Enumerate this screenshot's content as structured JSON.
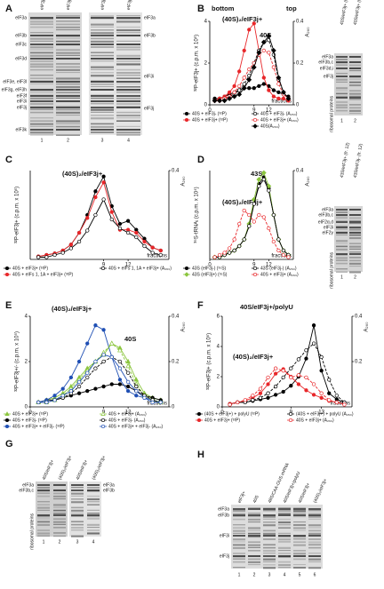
{
  "chart_data": [
    {
      "type": "line",
      "panel": "B",
      "annotations": [
        "bottom",
        "top",
        "(40S)₂/eIF3j+",
        "40S"
      ],
      "ylabel": "³²P-eIF3j+ (c.p.m. x 10⁵)",
      "y2label": "A₂₆₀",
      "xlabel": "fractions",
      "x": [
        1,
        2,
        3,
        4,
        5,
        6,
        7,
        8,
        9,
        10,
        11,
        12,
        13,
        14,
        15,
        16
      ],
      "xlim": [
        0,
        17
      ],
      "xticks": [
        0,
        9,
        12
      ],
      "ylim": [
        0,
        4
      ],
      "yticks": [
        0,
        2,
        4
      ],
      "y2lim": [
        0,
        0.4
      ],
      "y2ticks": [
        0,
        0.2,
        0.4
      ],
      "series": [
        {
          "name": "40S + eIF3j- (³²P)",
          "color": "#000000",
          "marker": "circle",
          "filled": true,
          "dashed": false,
          "values": [
            0.3,
            0.3,
            0.4,
            0.5,
            0.6,
            0.7,
            0.8,
            0.8,
            0.8,
            0.9,
            1.0,
            0.9,
            0.7,
            0.6,
            0.5,
            0.4
          ]
        },
        {
          "name": "40S + eIF3j+ (³²P)",
          "color": "#e8272a",
          "marker": "circle",
          "filled": true,
          "dashed": false,
          "values": [
            0.2,
            0.3,
            0.4,
            0.6,
            0.9,
            1.6,
            2.6,
            3.6,
            3.9,
            2.6,
            1.3,
            0.7,
            0.4,
            0.3,
            0.3,
            0.2
          ]
        },
        {
          "name": "40S + eIF3j- (A₂₆₀)",
          "color": "#000000",
          "marker": "circle",
          "filled": false,
          "dashed": true,
          "axis": "y2",
          "values": [
            0.02,
            0.02,
            0.03,
            0.04,
            0.05,
            0.07,
            0.1,
            0.14,
            0.2,
            0.26,
            0.3,
            0.31,
            0.24,
            0.12,
            0.06,
            0.03
          ]
        },
        {
          "name": "40S + eIF3j+ (A₂₆₀)",
          "color": "#e8272a",
          "marker": "circle",
          "filled": false,
          "dashed": true,
          "axis": "y2",
          "values": [
            0.02,
            0.02,
            0.03,
            0.04,
            0.06,
            0.09,
            0.13,
            0.17,
            0.2,
            0.24,
            0.26,
            0.25,
            0.18,
            0.1,
            0.05,
            0.03
          ]
        },
        {
          "name": "40S(A₂₆₀)",
          "color": "#000000",
          "marker": "diamond",
          "filled": true,
          "dashed": false,
          "axis": "y2",
          "values": [
            0.02,
            0.02,
            0.02,
            0.03,
            0.04,
            0.05,
            0.08,
            0.12,
            0.18,
            0.25,
            0.3,
            0.33,
            0.26,
            0.13,
            0.06,
            0.03
          ]
        }
      ]
    },
    {
      "type": "line",
      "panel": "C",
      "annotations": [
        "(40S)₂/eIF3j+"
      ],
      "ylabel": "³²P-eIF3j+ (c.p.m. x 10⁵)",
      "y2label": "A₂₆₀",
      "xlabel": "fractions",
      "x": [
        1,
        2,
        3,
        4,
        5,
        6,
        7,
        8,
        9,
        10,
        11,
        12,
        13,
        14,
        15,
        16
      ],
      "xlim": [
        0,
        17
      ],
      "xticks": [
        9,
        12
      ],
      "ylim": [
        0,
        3
      ],
      "yticks": [],
      "y2lim": [
        0,
        0.4
      ],
      "y2ticks": [
        0.4
      ],
      "series": [
        {
          "name": "40S + eIF3j+ (³²P)",
          "color": "#000000",
          "marker": "circle",
          "filled": true,
          "dashed": false,
          "values": [
            0.1,
            0.15,
            0.2,
            0.3,
            0.5,
            0.9,
            1.5,
            2.3,
            2.8,
            1.8,
            1.2,
            1.3,
            1.0,
            0.7,
            0.4,
            0.3
          ]
        },
        {
          "name": "40S + eIFs 1, 1A + eIF3j+ (³²P)",
          "color": "#e8272a",
          "marker": "circle",
          "filled": true,
          "dashed": false,
          "values": [
            0.1,
            0.15,
            0.2,
            0.3,
            0.5,
            0.9,
            1.4,
            2.1,
            2.6,
            1.6,
            1.0,
            1.0,
            0.9,
            0.6,
            0.4,
            0.3
          ]
        },
        {
          "name": "40S + eIFs 1, 1A + eIF3j+ (A₂₆₀)",
          "color": "#000000",
          "marker": "circle",
          "filled": false,
          "dashed": false,
          "axis": "y2",
          "values": [
            0.01,
            0.01,
            0.02,
            0.03,
            0.05,
            0.08,
            0.13,
            0.2,
            0.27,
            0.18,
            0.14,
            0.12,
            0.1,
            0.06,
            0.03,
            0.02
          ]
        }
      ]
    },
    {
      "type": "line",
      "panel": "D",
      "annotations": [
        "43S",
        "(40S)₂/eIF3j+"
      ],
      "ylabel": "³⁵S-tRNAᵢ (c.p.m. x 10⁴)",
      "y2label": "A₂₆₀",
      "xlabel": "fractions",
      "x": [
        1,
        2,
        3,
        4,
        5,
        6,
        7,
        8,
        9,
        10,
        11,
        12,
        13,
        14,
        15,
        16
      ],
      "xlim": [
        0,
        17
      ],
      "xticks": [
        0,
        9,
        12
      ],
      "ylim": [
        0,
        4
      ],
      "yticks": [],
      "y2lim": [
        0,
        0.4
      ],
      "y2ticks": [
        0.4
      ],
      "series": [
        {
          "name": "43S (eIF3j-) (³⁵S)",
          "color": "#000000",
          "marker": "circle",
          "filled": true,
          "dashed": false,
          "values": [
            0.1,
            0.1,
            0.2,
            0.3,
            0.4,
            0.6,
            0.9,
            1.5,
            2.5,
            3.4,
            3.7,
            3.2,
            2.0,
            0.9,
            0.4,
            0.2
          ]
        },
        {
          "name": "43S (eIF3j+) (³⁵S)",
          "color": "#8cc63f",
          "marker": "diamond",
          "filled": true,
          "dashed": false,
          "values": [
            0.1,
            0.1,
            0.2,
            0.3,
            0.4,
            0.6,
            0.9,
            1.6,
            2.7,
            3.6,
            3.9,
            3.3,
            2.0,
            0.9,
            0.4,
            0.2
          ]
        },
        {
          "name": "43S (eIF3j-) (A₂₆₀)",
          "color": "#000000",
          "marker": "circle",
          "filled": false,
          "dashed": false,
          "axis": "y2",
          "values": [
            0.01,
            0.01,
            0.02,
            0.03,
            0.04,
            0.06,
            0.09,
            0.15,
            0.25,
            0.33,
            0.36,
            0.31,
            0.2,
            0.09,
            0.04,
            0.02
          ]
        },
        {
          "name": "40S + eIF3j+ (A₂₆₀)",
          "color": "#e8272a",
          "marker": "circle",
          "filled": false,
          "dashed": true,
          "axis": "y2",
          "values": [
            0.01,
            0.02,
            0.03,
            0.05,
            0.09,
            0.16,
            0.22,
            0.2,
            0.17,
            0.2,
            0.19,
            0.14,
            0.08,
            0.04,
            0.02,
            0.01
          ]
        }
      ]
    },
    {
      "type": "line",
      "panel": "E",
      "annotations": [
        "(40S)₂/eIF3j+",
        "40S"
      ],
      "ylabel": "³²P-eIF3j+/- (c.p.m. x 10⁵)",
      "y2label": "A₂₆₀",
      "xlabel": "fractions",
      "x": [
        1,
        2,
        3,
        4,
        5,
        6,
        7,
        8,
        9,
        10,
        11,
        12,
        13,
        14,
        15,
        16
      ],
      "xlim": [
        0,
        17
      ],
      "xticks": [
        0,
        9,
        12
      ],
      "ylim": [
        0,
        4
      ],
      "yticks": [
        0,
        2,
        4
      ],
      "y2lim": [
        0,
        0.4
      ],
      "y2ticks": [
        0,
        0.2,
        0.4
      ],
      "series": [
        {
          "name": "40S + eIF3j+ (³²P)",
          "color": "#8cc63f",
          "marker": "triangle",
          "filled": true,
          "dashed": false,
          "values": [
            0.2,
            0.3,
            0.4,
            0.6,
            0.9,
            1.3,
            1.7,
            2.0,
            2.3,
            2.8,
            2.6,
            2.0,
            1.2,
            0.6,
            0.4,
            0.3
          ]
        },
        {
          "name": "40S + eIF3j- (³²P)",
          "color": "#000000",
          "marker": "circle",
          "filled": true,
          "dashed": false,
          "values": [
            0.2,
            0.3,
            0.3,
            0.4,
            0.5,
            0.6,
            0.7,
            0.8,
            0.9,
            1.0,
            1.0,
            0.9,
            0.7,
            0.5,
            0.4,
            0.3
          ]
        },
        {
          "name": "40S + eIF3j+ + eIF3j- (³²P)",
          "color": "#1f4fb4",
          "marker": "circle",
          "filled": true,
          "dashed": false,
          "values": [
            0.2,
            0.3,
            0.5,
            0.8,
            1.3,
            2.0,
            2.8,
            3.6,
            3.4,
            2.2,
            1.2,
            0.7,
            0.5,
            0.4,
            0.3,
            0.2
          ]
        },
        {
          "name": "40S + eIF3j+ (A₂₆₀)",
          "color": "#8cc63f",
          "marker": "triangle",
          "filled": false,
          "dashed": true,
          "axis": "y2",
          "values": [
            0.02,
            0.02,
            0.03,
            0.05,
            0.08,
            0.12,
            0.16,
            0.2,
            0.24,
            0.28,
            0.25,
            0.18,
            0.1,
            0.05,
            0.03,
            0.02
          ]
        },
        {
          "name": "40S + eIF3j- (A₂₆₀)",
          "color": "#000000",
          "marker": "circle",
          "filled": false,
          "dashed": true,
          "axis": "y2",
          "values": [
            0.02,
            0.02,
            0.03,
            0.04,
            0.06,
            0.09,
            0.13,
            0.17,
            0.2,
            0.22,
            0.2,
            0.15,
            0.09,
            0.05,
            0.03,
            0.02
          ]
        },
        {
          "name": "40S + eIF3j+ + eIF3j- (A₂₆₀)",
          "color": "#1f4fb4",
          "marker": "circle",
          "filled": false,
          "dashed": false,
          "axis": "y2",
          "values": [
            0.02,
            0.02,
            0.03,
            0.05,
            0.07,
            0.11,
            0.15,
            0.2,
            0.23,
            0.22,
            0.17,
            0.11,
            0.07,
            0.04,
            0.02,
            0.02
          ]
        }
      ]
    },
    {
      "type": "line",
      "panel": "F",
      "annotations": [
        "40S/eIF3j+/polyU",
        "(40S)₂/eIF3j+"
      ],
      "ylabel": "³²P-eIF3j+ (c.p.m. x 10⁵)",
      "y2label": "A₂₆₀",
      "xlabel": "fractions",
      "x": [
        1,
        2,
        3,
        4,
        5,
        6,
        7,
        8,
        9,
        10,
        11,
        12,
        13,
        14,
        15,
        16
      ],
      "xlim": [
        0,
        17
      ],
      "xticks": [
        0,
        9,
        13
      ],
      "ylim": [
        0,
        6
      ],
      "yticks": [
        0,
        2,
        4,
        6
      ],
      "y2lim": [
        0,
        0.4
      ],
      "y2ticks": [
        0.2,
        0.4
      ],
      "series": [
        {
          "name": "(40S + eIF3j+) + polyU (³²P)",
          "color": "#000000",
          "marker": "circle",
          "filled": true,
          "dashed": false,
          "values": [
            0.2,
            0.3,
            0.3,
            0.4,
            0.5,
            0.6,
            0.8,
            1.0,
            1.4,
            2.0,
            3.2,
            5.4,
            2.4,
            0.9,
            0.5,
            0.3
          ]
        },
        {
          "name": "40S + eIF3j+ (³²P)",
          "color": "#e8272a",
          "marker": "circle",
          "filled": true,
          "dashed": false,
          "values": [
            0.2,
            0.3,
            0.4,
            0.6,
            0.9,
            1.5,
            2.2,
            2.5,
            2.0,
            1.5,
            1.1,
            0.8,
            0.6,
            0.4,
            0.3,
            0.2
          ]
        },
        {
          "name": "(40S + eIF3j+) + polyU (A₂₆₀)",
          "color": "#000000",
          "marker": "circle",
          "filled": false,
          "dashed": true,
          "axis": "y2",
          "values": [
            0.01,
            0.02,
            0.02,
            0.03,
            0.04,
            0.06,
            0.09,
            0.13,
            0.17,
            0.21,
            0.25,
            0.28,
            0.22,
            0.12,
            0.05,
            0.02
          ]
        },
        {
          "name": "40S + eIF3j+ (A₂₆₀)",
          "color": "#e8272a",
          "marker": "circle",
          "filled": false,
          "dashed": true,
          "axis": "y2",
          "values": [
            0.01,
            0.02,
            0.03,
            0.05,
            0.08,
            0.13,
            0.17,
            0.16,
            0.13,
            0.14,
            0.13,
            0.1,
            0.06,
            0.03,
            0.02,
            0.01
          ]
        }
      ]
    }
  ],
  "gels": [
    {
      "panel": "A",
      "headers": [
        "eIF3j+",
        "eIF3j-",
        "eIF3j-",
        "eIF3j+"
      ],
      "left_labels": [
        "eIF3a",
        "eIF3b",
        "eIF3c",
        "eIF3d",
        "eIF3e, eIF3l",
        "eIF3g, eIF3h",
        "eIF3f",
        "eIF3i",
        "eIF3j",
        "eIF3k"
      ],
      "right_labels": [
        "eIF3a",
        "eIF3b",
        "eIF3i",
        "eIF3j"
      ],
      "lanes": [
        "1",
        "2",
        "3",
        "4"
      ]
    },
    {
      "headers": [
        "40S/eIF3j+ (fr. 9)",
        "40S/eIF3j+ (fr. 12)"
      ],
      "left_labels": [
        "eIF3a",
        "eIF3b,c",
        "eIF3d,i",
        "eIF3j",
        "ribosomal proteins"
      ],
      "lanes": [
        "1",
        "2"
      ]
    },
    {
      "headers": [
        "43S/eIF3j+ (fr. 12)",
        "43S/eIF3j- (fr. 12)"
      ],
      "left_labels": [
        "eIF3a",
        "eIF3b,c",
        "eIF2α,d",
        "eIF3i",
        "eIF2γ",
        "ribosomal proteins"
      ],
      "lanes": [
        "1",
        "2"
      ]
    },
    {
      "panel": "G",
      "headers": [
        "40S/eIF3j+",
        "(40S)₂/eIF3j+",
        "40S/eIF3j+",
        "(40S)₂/eIF3j+"
      ],
      "left_labels": [
        "eIF3a",
        "eIF3b,c",
        "ribosomal proteins"
      ],
      "right_labels": [
        "eIF3a",
        "eIF3b"
      ],
      "lanes": [
        "1",
        "2",
        "3",
        "4"
      ]
    },
    {
      "panel": "H",
      "headers": [
        "eIF3j+",
        "40S",
        "48S/CAA-GUS mRNA",
        "40S/eIF3j+/polyU",
        "40S/eIF3j+",
        "(40S)₂/eIF3j+"
      ],
      "left_labels": [
        "eIF3a",
        "eIF3b",
        "eIF3i",
        "eIF3j"
      ],
      "lanes": [
        "1",
        "2",
        "3",
        "4",
        "5",
        "6"
      ]
    }
  ]
}
